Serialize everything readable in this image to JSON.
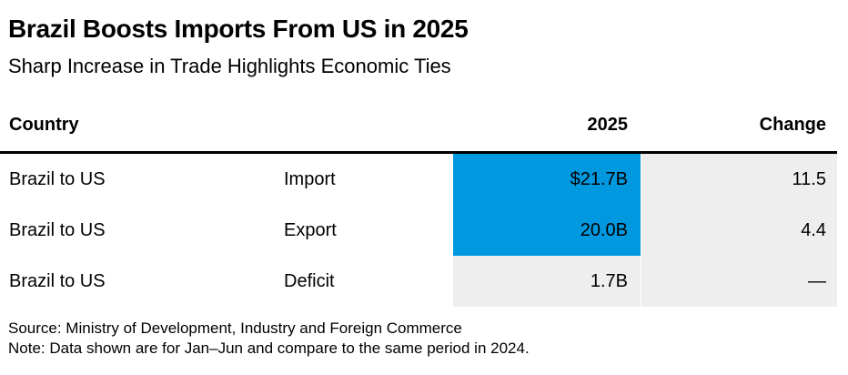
{
  "title": "Brazil Boosts Imports From US in 2025",
  "subtitle": "Sharp Increase in Trade Highlights Economic Ties",
  "colors": {
    "value_bar": "#0099e0",
    "cell_background": "#eeeeee"
  },
  "chart_data": {
    "type": "table",
    "columns": [
      "Country",
      "",
      "2025",
      "Change"
    ],
    "value_max": 21.7,
    "rows": [
      {
        "country": "Brazil to US",
        "type": "Import",
        "value_label": "$21.7B",
        "value": 21.7,
        "change": "11.5"
      },
      {
        "country": "Brazil to US",
        "type": "Export",
        "value_label": "20.0B",
        "value": 20.0,
        "change": "4.4"
      },
      {
        "country": "Brazil to US",
        "type": "Deficit",
        "value_label": "1.7B",
        "value": 1.7,
        "change": "—"
      }
    ]
  },
  "footer": {
    "source": "Source: Ministry of Development, Industry and Foreign Commerce",
    "note": "Note: Data shown are for Jan–Jun and compare to the same period in 2024."
  }
}
